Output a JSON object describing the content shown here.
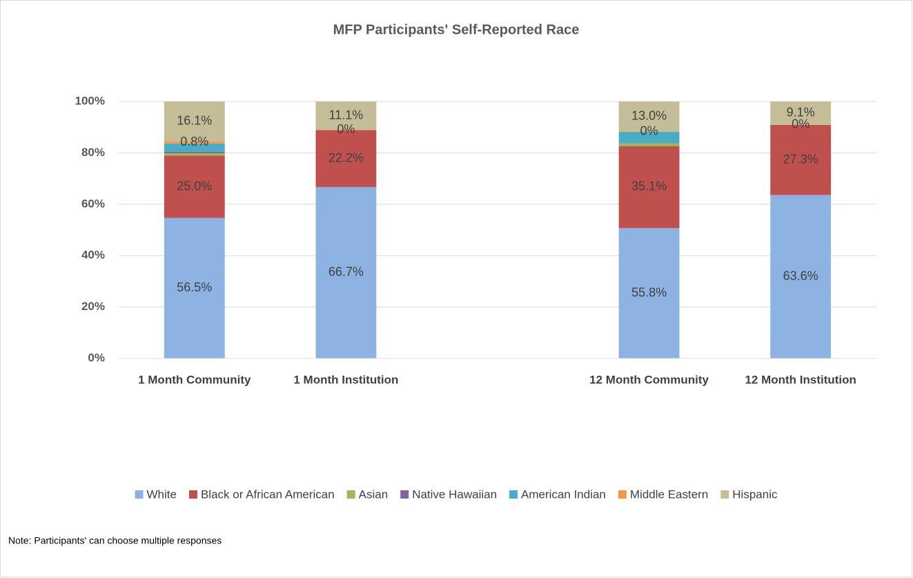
{
  "chart_data": {
    "type": "bar",
    "stacking": "percent",
    "title": "MFP Participants' Self-Reported Race",
    "note": "Note: Participants' can choose multiple responses",
    "categories": [
      "1 Month Community",
      "1 Month Institution",
      null,
      "12 Month Community",
      "12 Month Institution"
    ],
    "series": [
      {
        "name": "White",
        "color": "#8db3e2",
        "values": [
          56.5,
          66.7,
          null,
          55.8,
          63.6
        ],
        "value_labels": [
          "56.5%",
          "66.7%",
          null,
          "55.8%",
          "63.6%"
        ]
      },
      {
        "name": "Black or African American",
        "color": "#c0504d",
        "values": [
          25.0,
          22.2,
          null,
          35.1,
          27.3
        ],
        "value_labels": [
          "25.0%",
          "22.2%",
          null,
          "35.1%",
          "27.3%"
        ]
      },
      {
        "name": "Asian",
        "color": "#9bbb59",
        "values": [
          1.0,
          0,
          null,
          1.2,
          0
        ]
      },
      {
        "name": "Native Hawaiian",
        "color": "#8064a2",
        "values": [
          0.6,
          0,
          null,
          0,
          0
        ]
      },
      {
        "name": "American Indian",
        "color": "#4bacc6",
        "values": [
          3.3,
          0,
          null,
          4.9,
          0
        ]
      },
      {
        "name": "Middle Eastern",
        "color": "#f79646",
        "values": [
          0.8,
          0,
          null,
          0,
          0
        ],
        "value_labels": [
          "0.8%",
          "0%",
          null,
          "0%",
          "0%"
        ]
      },
      {
        "name": "Hispanic",
        "color": "#c4bd97",
        "values": [
          16.1,
          11.1,
          null,
          13.0,
          9.1
        ],
        "value_labels": [
          "16.1%",
          "11.1%",
          null,
          "13.0%",
          "9.1%"
        ]
      }
    ],
    "ylim": [
      0,
      100
    ],
    "yticks": [
      {
        "value": 0,
        "label": "0%"
      },
      {
        "value": 20,
        "label": "20%"
      },
      {
        "value": 40,
        "label": "40%"
      },
      {
        "value": 60,
        "label": "60%"
      },
      {
        "value": 80,
        "label": "80%"
      },
      {
        "value": 100,
        "label": "100%"
      }
    ],
    "grid": true,
    "legend": "bottom"
  }
}
